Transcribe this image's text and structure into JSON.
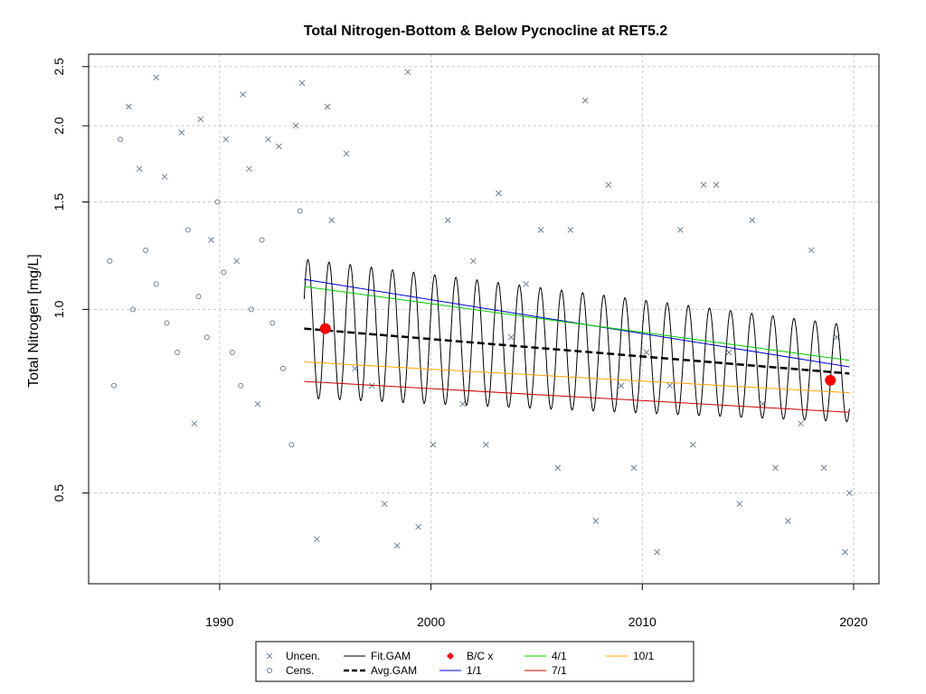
{
  "chart_data": {
    "type": "scatter",
    "title": "Total Nitrogen-Bottom & Below Pycnocline at RET5.2",
    "xlabel": "",
    "ylabel": "Total Nitrogen [mg/L]",
    "y_scale": "log",
    "xlim": [
      1983.8,
      2021.2
    ],
    "ylim": [
      0.355,
      2.62
    ],
    "x_ticks": [
      1990,
      2000,
      2010,
      2020
    ],
    "y_ticks": [
      0.5,
      1.0,
      1.5,
      2.0,
      2.5
    ],
    "y_tick_labels": [
      "0.5",
      "1.0",
      "1.5",
      "2.0",
      "2.5"
    ],
    "grid": true,
    "legend_position": "bottom",
    "colors": {
      "uncen": "#708090",
      "cens": "#708090",
      "fit_gam": "#000000",
      "avg_gam": "#000000",
      "bc": "#ff0000",
      "jan1": "#0000cc",
      "apr1": "#00cc00",
      "jul1": "#cc0000",
      "oct1": "#ffa500"
    },
    "series": [
      {
        "name": "Uncen.",
        "marker": "x",
        "points": [
          [
            1985.7,
            2.15
          ],
          [
            1986.2,
            1.7
          ],
          [
            1987.0,
            2.4
          ],
          [
            1987.4,
            1.65
          ],
          [
            1988.2,
            1.95
          ],
          [
            1988.8,
            0.65
          ],
          [
            1989.1,
            2.05
          ],
          [
            1989.6,
            1.3
          ],
          [
            1990.3,
            1.9
          ],
          [
            1990.8,
            1.2
          ],
          [
            1991.1,
            2.25
          ],
          [
            1991.4,
            1.7
          ],
          [
            1991.8,
            0.7
          ],
          [
            1992.3,
            1.9
          ],
          [
            1992.8,
            1.85
          ],
          [
            1993.6,
            2.0
          ],
          [
            1993.9,
            2.35
          ],
          [
            1994.6,
            0.42
          ],
          [
            1995.1,
            2.15
          ],
          [
            1995.3,
            1.4
          ],
          [
            1996.0,
            1.8
          ],
          [
            1996.4,
            0.8
          ],
          [
            1997.2,
            0.75
          ],
          [
            1997.8,
            0.48
          ],
          [
            1998.4,
            0.41
          ],
          [
            1998.9,
            2.45
          ],
          [
            1999.4,
            0.44
          ],
          [
            2000.1,
            0.6
          ],
          [
            2000.8,
            1.4
          ],
          [
            2001.5,
            0.7
          ],
          [
            2002.0,
            1.2
          ],
          [
            2002.6,
            0.6
          ],
          [
            2003.2,
            1.55
          ],
          [
            2003.8,
            0.9
          ],
          [
            2004.5,
            1.1
          ],
          [
            2005.2,
            1.35
          ],
          [
            2006.0,
            0.55
          ],
          [
            2006.6,
            1.35
          ],
          [
            2007.3,
            2.2
          ],
          [
            2007.8,
            0.45
          ],
          [
            2008.4,
            1.6
          ],
          [
            2009.0,
            0.75
          ],
          [
            2009.6,
            0.55
          ],
          [
            2010.2,
            0.85
          ],
          [
            2010.7,
            0.4
          ],
          [
            2011.3,
            0.75
          ],
          [
            2011.8,
            1.35
          ],
          [
            2012.4,
            0.6
          ],
          [
            2012.9,
            1.6
          ],
          [
            2013.5,
            1.6
          ],
          [
            2014.1,
            0.85
          ],
          [
            2014.6,
            0.48
          ],
          [
            2015.2,
            1.4
          ],
          [
            2015.7,
            0.7
          ],
          [
            2016.3,
            0.55
          ],
          [
            2016.9,
            0.45
          ],
          [
            2017.5,
            0.65
          ],
          [
            2018.0,
            1.25
          ],
          [
            2018.6,
            0.55
          ],
          [
            2019.2,
            0.9
          ],
          [
            2019.6,
            0.4
          ],
          [
            2019.8,
            0.5
          ]
        ]
      },
      {
        "name": "Cens.",
        "marker": "o",
        "points": [
          [
            1984.8,
            1.2
          ],
          [
            1985.0,
            0.75
          ],
          [
            1985.3,
            1.9
          ],
          [
            1985.9,
            1.0
          ],
          [
            1986.5,
            1.25
          ],
          [
            1987.0,
            1.1
          ],
          [
            1987.5,
            0.95
          ],
          [
            1988.0,
            0.85
          ],
          [
            1988.5,
            1.35
          ],
          [
            1989.0,
            1.05
          ],
          [
            1989.4,
            0.9
          ],
          [
            1989.9,
            1.5
          ],
          [
            1990.2,
            1.15
          ],
          [
            1990.6,
            0.85
          ],
          [
            1991.0,
            0.75
          ],
          [
            1991.5,
            1.0
          ],
          [
            1992.0,
            1.3
          ],
          [
            1992.5,
            0.95
          ],
          [
            1993.0,
            0.8
          ],
          [
            1993.4,
            0.6
          ],
          [
            1993.8,
            1.45
          ]
        ]
      },
      {
        "name": "Fit.GAM",
        "line": true,
        "x_start": 1994.0,
        "x_end": 2019.8,
        "mean_start": 0.93,
        "mean_end": 0.785,
        "amp_start": 1.3,
        "amp_end": 1.2
      },
      {
        "name": "Avg.GAM",
        "line": true,
        "dashed": true,
        "x_start": 1994.0,
        "x_end": 2019.8,
        "y_start": 0.93,
        "y_end": 0.785
      },
      {
        "name": "1/1",
        "line": true,
        "x": [
          1994.0,
          2019.8
        ],
        "y": [
          1.12,
          0.805
        ]
      },
      {
        "name": "4/1",
        "line": true,
        "x": [
          1994.0,
          2019.8
        ],
        "y": [
          1.09,
          0.825
        ]
      },
      {
        "name": "7/1",
        "line": true,
        "x": [
          1994.0,
          2019.8
        ],
        "y": [
          0.762,
          0.678
        ]
      },
      {
        "name": "10/1",
        "line": true,
        "x": [
          1994.0,
          2019.8
        ],
        "y": [
          0.82,
          0.73
        ]
      },
      {
        "name": "B/C x",
        "marker": "dot",
        "points": [
          [
            1995.0,
            0.93
          ],
          [
            2018.9,
            0.765
          ]
        ]
      }
    ]
  },
  "legend": [
    {
      "label": "Uncen.",
      "symbol": "x",
      "color": "#708090"
    },
    {
      "label": "Cens.",
      "symbol": "o",
      "color": "#708090"
    },
    {
      "label": "Fit.GAM",
      "symbol": "line",
      "color": "#000000"
    },
    {
      "label": "Avg.GAM",
      "symbol": "dash",
      "color": "#000000"
    },
    {
      "label": "B/C x",
      "symbol": "diamond",
      "color": "#ff0000"
    },
    {
      "label": "1/1",
      "symbol": "line",
      "color": "#0000cc"
    },
    {
      "label": "4/1",
      "symbol": "line",
      "color": "#00cc00"
    },
    {
      "label": "7/1",
      "symbol": "line",
      "color": "#cc0000"
    },
    {
      "label": "10/1",
      "symbol": "line",
      "color": "#ffa500"
    }
  ]
}
